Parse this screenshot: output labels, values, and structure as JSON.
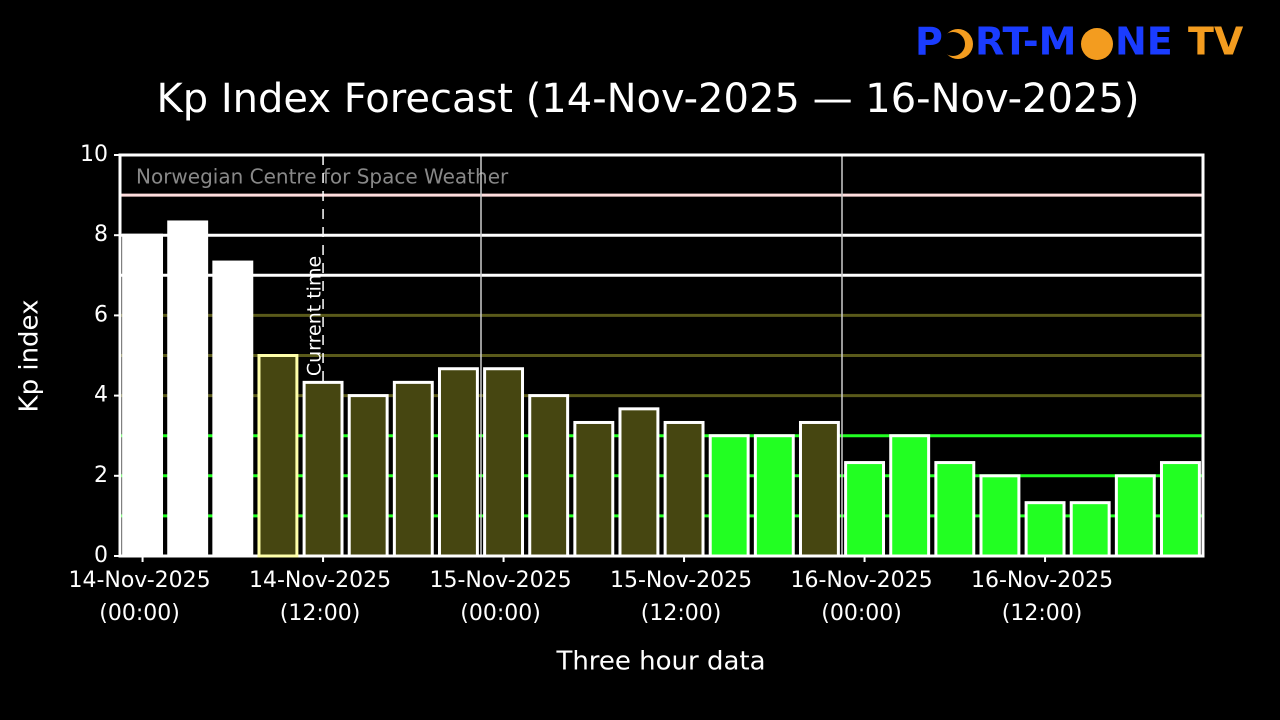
{
  "logo": {
    "parts": [
      "P",
      "RT-M",
      "NE",
      "TV"
    ]
  },
  "chart_data": {
    "type": "bar",
    "title": "Kp Index Forecast (14-Nov-2025 — 16-Nov-2025)",
    "watermark": "Norwegian Centre for Space Weather",
    "annotation": "Current time",
    "x_label": "Three hour data",
    "y_label": "Kp index",
    "categories": [
      [
        "14-Nov-2025",
        "(00:00)"
      ],
      null,
      null,
      null,
      [
        "14-Nov-2025",
        "(12:00)"
      ],
      null,
      null,
      null,
      [
        "15-Nov-2025",
        "(00:00)"
      ],
      null,
      null,
      null,
      [
        "15-Nov-2025",
        "(12:00)"
      ],
      null,
      null,
      null,
      [
        "16-Nov-2025",
        "(00:00)"
      ],
      null,
      null,
      null,
      [
        "16-Nov-2025",
        "(12:00)"
      ],
      null,
      null,
      null
    ],
    "values": [
      8.0,
      8.33,
      7.33,
      5.0,
      4.33,
      4.0,
      4.33,
      4.67,
      4.67,
      4.0,
      3.33,
      3.67,
      3.33,
      3.0,
      3.0,
      3.33,
      2.33,
      3.0,
      2.33,
      2.0,
      1.33,
      1.33,
      2.0,
      2.33
    ],
    "colors": [
      "#ffffff",
      "#ffffff",
      "#ffffff",
      "#464611",
      "#464611",
      "#464611",
      "#464611",
      "#464611",
      "#464611",
      "#464611",
      "#464611",
      "#464611",
      "#464611",
      "#22ff22",
      "#22ff22",
      "#464611",
      "#22ff22",
      "#22ff22",
      "#22ff22",
      "#22ff22",
      "#22ff22",
      "#22ff22",
      "#22ff22",
      "#22ff22"
    ],
    "levels": [
      {
        "value": 1,
        "color": "#22ff22"
      },
      {
        "value": 2,
        "color": "#22ff22"
      },
      {
        "value": 3,
        "color": "#22ff22"
      },
      {
        "value": 4,
        "color": "#5a5a1a"
      },
      {
        "value": 5,
        "color": "#5a5a1a"
      },
      {
        "value": 6,
        "color": "#5a5a1a"
      },
      {
        "value": 7,
        "color": "#ffffff"
      },
      {
        "value": 8,
        "color": "#ffffff"
      },
      {
        "value": 9,
        "color": "#ffdddd"
      }
    ],
    "ylim": [
      0,
      10
    ],
    "yticks": [
      0,
      2,
      4,
      6,
      8,
      10
    ]
  }
}
